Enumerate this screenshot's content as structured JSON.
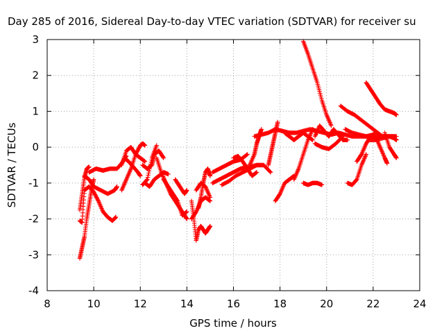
{
  "chart_data": {
    "type": "scatter",
    "title": "Day 285 of 2016, Sidereal Day-to-day VTEC variation (SDTVAR) for receiver su",
    "xlabel": "GPS time / hours",
    "ylabel": "SDTVAR / TECUs",
    "xlim": [
      8,
      24
    ],
    "ylim": [
      -4,
      3
    ],
    "xticks": [
      8,
      10,
      12,
      14,
      16,
      18,
      20,
      22,
      24
    ],
    "yticks": [
      -4,
      -3,
      -2,
      -1,
      0,
      1,
      2,
      3
    ],
    "grid": true,
    "marker": "plus",
    "color": "#ff0000",
    "tracks": [
      {
        "x": [
          9.4,
          9.5,
          9.6,
          9.8,
          10.0,
          10.2,
          10.4,
          10.6,
          10.8,
          10.95
        ],
        "y": [
          -2.05,
          -2.1,
          -1.2,
          -1.1,
          -1.25,
          -1.5,
          -1.8,
          -1.95,
          -2.05,
          -1.95
        ]
      },
      {
        "x": [
          9.4,
          9.5,
          9.6,
          9.7,
          9.8,
          9.9,
          10.0
        ],
        "y": [
          -3.1,
          -2.8,
          -2.5,
          -2.0,
          -1.6,
          -1.2,
          -0.9
        ]
      },
      {
        "x": [
          9.4,
          9.5,
          9.6,
          9.7,
          9.8
        ],
        "y": [
          -1.75,
          -1.3,
          -0.85,
          -0.6,
          -0.55
        ]
      },
      {
        "x": [
          9.6,
          9.8,
          10.0,
          10.3,
          10.6,
          10.9,
          11.0
        ],
        "y": [
          -0.8,
          -0.9,
          -1.1,
          -1.2,
          -1.3,
          -1.2,
          -1.1
        ]
      },
      {
        "x": [
          9.8,
          10.1,
          10.4,
          10.7,
          11.0,
          11.2,
          11.4
        ],
        "y": [
          -0.7,
          -0.6,
          -0.65,
          -0.6,
          -0.6,
          -0.45,
          -0.25
        ]
      },
      {
        "x": [
          11.2,
          11.4,
          11.6,
          11.8,
          12.0,
          12.2
        ],
        "y": [
          -0.5,
          -0.1,
          0.0,
          -0.2,
          -0.3,
          -0.4
        ]
      },
      {
        "x": [
          11.2,
          11.4,
          11.6,
          11.8,
          12.0,
          12.1,
          12.2
        ],
        "y": [
          -1.2,
          -0.9,
          -0.6,
          -0.2,
          0.05,
          0.1,
          0.05
        ]
      },
      {
        "x": [
          11.3,
          11.5,
          11.7,
          11.9,
          12.0
        ],
        "y": [
          -0.3,
          -0.4,
          -0.55,
          -0.7,
          -0.8
        ]
      },
      {
        "x": [
          12.1,
          12.3,
          12.5,
          12.6,
          12.8,
          13.0
        ],
        "y": [
          -0.5,
          -0.6,
          -0.5,
          -0.2,
          -0.1,
          -0.3
        ]
      },
      {
        "x": [
          12.2,
          12.4,
          12.6,
          12.8,
          13.0,
          13.2
        ],
        "y": [
          -1.0,
          -1.1,
          -0.9,
          -0.8,
          -0.7,
          -0.75
        ]
      },
      {
        "x": [
          12.1,
          12.3,
          12.5,
          12.7
        ],
        "y": [
          -1.05,
          -0.9,
          -0.3,
          0.05
        ]
      },
      {
        "x": [
          12.7,
          12.9,
          13.1,
          13.3,
          13.5,
          13.7,
          13.9,
          14.0
        ],
        "y": [
          -0.3,
          -0.7,
          -1.0,
          -1.3,
          -1.5,
          -1.7,
          -1.9,
          -2.0
        ]
      },
      {
        "x": [
          13.0,
          13.2,
          13.4,
          13.6,
          13.8,
          14.0
        ],
        "y": [
          -0.9,
          -1.1,
          -1.3,
          -1.5,
          -1.9,
          -1.8
        ]
      },
      {
        "x": [
          13.5,
          13.7,
          13.9,
          14.0
        ],
        "y": [
          -0.9,
          -1.1,
          -1.3,
          -1.2
        ]
      },
      {
        "x": [
          14.2,
          14.3,
          14.4,
          14.5,
          14.6,
          14.7,
          14.8,
          14.9,
          15.0
        ],
        "y": [
          -1.5,
          -2.0,
          -2.6,
          -2.3,
          -2.2,
          -2.3,
          -2.4,
          -2.3,
          -2.2
        ]
      },
      {
        "x": [
          14.2,
          14.4,
          14.6,
          14.8,
          15.0
        ],
        "y": [
          -2.0,
          -1.8,
          -1.5,
          -1.4,
          -1.5
        ]
      },
      {
        "x": [
          14.5,
          14.6,
          14.7,
          14.8,
          14.9,
          15.0
        ],
        "y": [
          -1.7,
          -1.4,
          -1.0,
          -0.7,
          -0.6,
          -0.8
        ]
      },
      {
        "x": [
          14.4,
          14.6,
          14.8,
          15.0
        ],
        "y": [
          -1.2,
          -1.0,
          -1.1,
          -1.4
        ]
      },
      {
        "x": [
          15.1,
          15.4,
          15.7,
          16.0,
          16.3,
          16.6
        ],
        "y": [
          -0.7,
          -0.6,
          -0.5,
          -0.4,
          -0.35,
          -0.2
        ]
      },
      {
        "x": [
          15.1,
          15.4,
          15.7,
          16.0,
          16.3,
          16.6,
          17.0
        ],
        "y": [
          -1.0,
          -0.9,
          -0.8,
          -0.7,
          -0.6,
          -0.55,
          -0.5
        ]
      },
      {
        "x": [
          15.5,
          15.8,
          16.1,
          16.4,
          16.7,
          17.0,
          17.3,
          17.6
        ],
        "y": [
          -1.05,
          -0.95,
          -0.8,
          -0.7,
          -0.6,
          -0.5,
          -0.5,
          -0.7
        ]
      },
      {
        "x": [
          16.0,
          16.2,
          16.4,
          16.6,
          16.8,
          17.0
        ],
        "y": [
          -0.3,
          -0.25,
          -0.4,
          -0.6,
          -0.8,
          -0.7
        ]
      },
      {
        "x": [
          16.7,
          16.9,
          17.0,
          17.1,
          17.2
        ],
        "y": [
          -0.5,
          -0.2,
          0.1,
          0.3,
          0.5
        ]
      },
      {
        "x": [
          16.9,
          17.2,
          17.5,
          17.8,
          18.1,
          18.4,
          18.7,
          19.0,
          19.3,
          19.6,
          19.9,
          20.2,
          20.5,
          20.8,
          21.1,
          21.4,
          21.7,
          22.0,
          22.3,
          22.6,
          22.9
        ],
        "y": [
          0.3,
          0.35,
          0.4,
          0.5,
          0.45,
          0.4,
          0.4,
          0.45,
          0.5,
          0.45,
          0.4,
          0.35,
          0.4,
          0.35,
          0.3,
          0.3,
          0.3,
          0.25,
          0.3,
          0.3,
          0.3
        ]
      },
      {
        "x": [
          17.5,
          17.6,
          17.7,
          17.8,
          17.9
        ],
        "y": [
          -0.5,
          -0.2,
          0.1,
          0.4,
          0.7
        ]
      },
      {
        "x": [
          17.8,
          18.0,
          18.2,
          18.4,
          18.6
        ],
        "y": [
          -1.5,
          -1.3,
          -1.0,
          -0.9,
          -0.8
        ]
      },
      {
        "x": [
          18.2,
          18.4,
          18.6,
          18.8,
          19.0,
          19.2,
          19.4
        ],
        "y": [
          0.4,
          0.3,
          0.2,
          0.3,
          0.4,
          0.3,
          0.2
        ]
      },
      {
        "x": [
          18.6,
          18.8,
          19.0,
          19.2,
          19.4,
          19.6
        ],
        "y": [
          -0.9,
          -0.6,
          -0.2,
          0.2,
          0.5,
          0.4
        ]
      },
      {
        "x": [
          19.0,
          19.2,
          19.4,
          19.6,
          19.8,
          20.0,
          20.2
        ],
        "y": [
          2.95,
          2.6,
          2.2,
          1.8,
          1.3,
          0.9,
          0.6
        ]
      },
      {
        "x": [
          19.0,
          19.2,
          19.4,
          19.6,
          19.8
        ],
        "y": [
          -1.0,
          -1.05,
          -1.0,
          -1.0,
          -1.05
        ]
      },
      {
        "x": [
          19.5,
          19.7,
          19.9,
          20.1,
          20.3,
          20.5,
          20.7,
          20.9
        ],
        "y": [
          0.3,
          0.6,
          0.45,
          0.3,
          0.5,
          0.35,
          0.2,
          0.2
        ]
      },
      {
        "x": [
          19.5,
          19.8,
          20.1,
          20.4,
          20.7
        ],
        "y": [
          0.1,
          0.0,
          -0.05,
          0.1,
          0.3
        ]
      },
      {
        "x": [
          20.6,
          20.9,
          21.2,
          21.5,
          21.8,
          22.1,
          22.4,
          22.7,
          23.0
        ],
        "y": [
          1.15,
          1.0,
          0.9,
          0.75,
          0.6,
          0.45,
          0.3,
          0.3,
          0.3
        ]
      },
      {
        "x": [
          20.9,
          21.1,
          21.3,
          21.5,
          21.7
        ],
        "y": [
          -1.0,
          -1.05,
          -0.9,
          -0.5,
          -0.2
        ]
      },
      {
        "x": [
          21.3,
          21.5,
          21.7,
          21.9,
          22.1
        ],
        "y": [
          -0.4,
          -0.2,
          0.1,
          0.3,
          0.4
        ]
      },
      {
        "x": [
          21.7,
          21.9,
          22.1,
          22.3,
          22.5,
          22.7,
          22.9,
          23.0
        ],
        "y": [
          1.8,
          1.6,
          1.4,
          1.2,
          1.05,
          1.0,
          0.95,
          0.9
        ]
      },
      {
        "x": [
          21.8,
          22.1,
          22.4,
          22.7,
          22.9,
          23.0
        ],
        "y": [
          0.2,
          0.2,
          0.25,
          0.3,
          0.25,
          0.2
        ]
      },
      {
        "x": [
          22.1,
          22.3,
          22.5,
          22.6
        ],
        "y": [
          0.3,
          0.0,
          -0.3,
          -0.45
        ]
      },
      {
        "x": [
          22.5,
          22.7,
          22.9,
          23.0
        ],
        "y": [
          0.4,
          0.0,
          -0.2,
          -0.3
        ]
      },
      {
        "x": [
          20.8,
          21.1,
          21.4,
          21.7,
          22.0,
          22.3
        ],
        "y": [
          0.5,
          0.4,
          0.35,
          0.3,
          0.35,
          0.3
        ]
      }
    ]
  }
}
